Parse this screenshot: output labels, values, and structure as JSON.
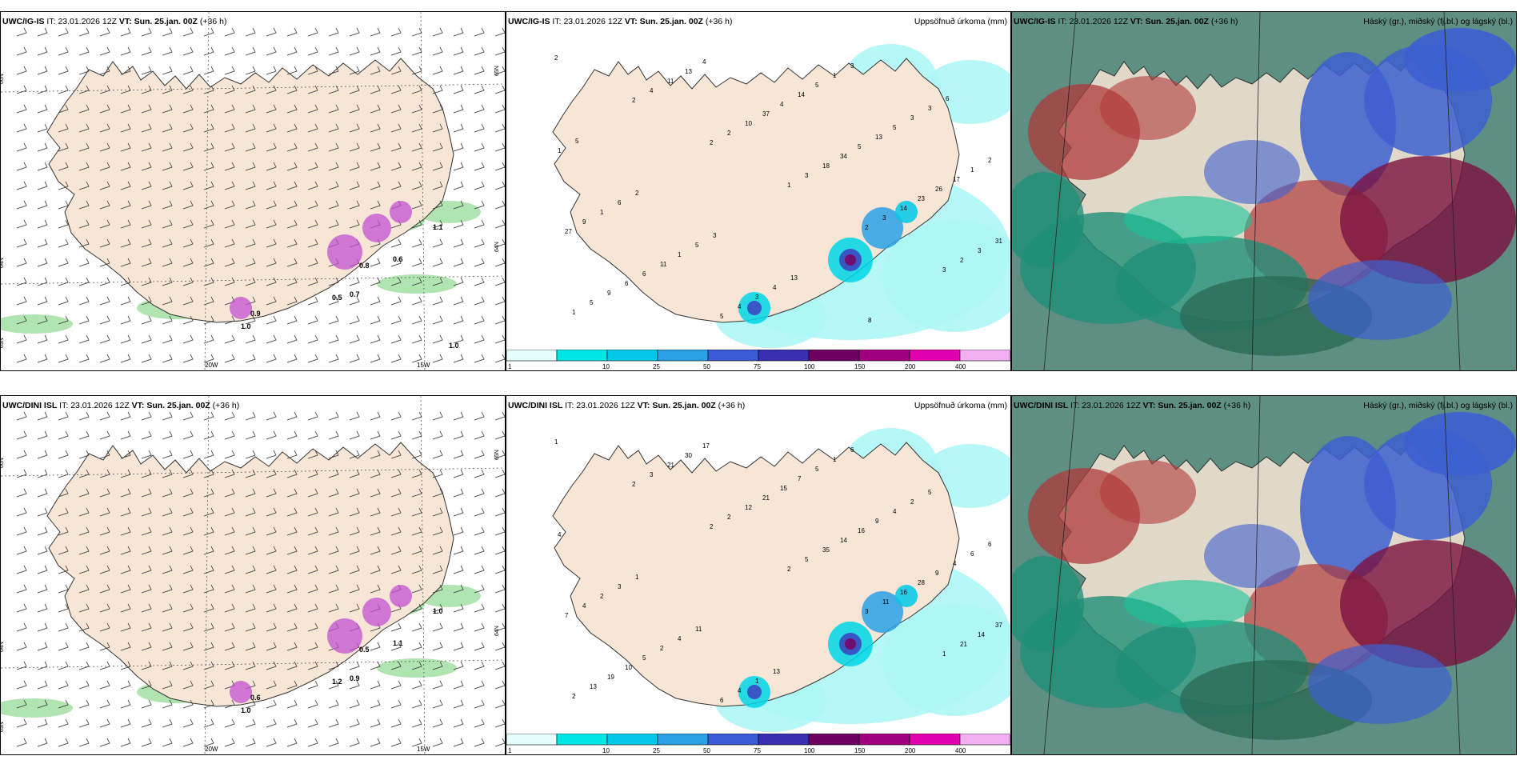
{
  "colors": {
    "land": "#f7e6d6",
    "sea": "#ffffff",
    "precip_sea": "#aef6f6",
    "wind_green": "#8fd98f",
    "precip_purple": "#c24fd0",
    "low_cloud": "#3d5fd0",
    "mid_cloud": "#1f8f78",
    "high_cloud": "#b03a3a"
  },
  "colorbar": {
    "labels": [
      "1",
      "10",
      "25",
      "50",
      "75",
      "100",
      "150",
      "200",
      "400"
    ],
    "colors": [
      "#e6ffff",
      "#00e6e6",
      "#00c8e6",
      "#2aa0e6",
      "#3a5ad8",
      "#3a2fb0",
      "#6e0060",
      "#a0007f",
      "#e000b0",
      "#f0b0f0"
    ]
  },
  "panels": [
    {
      "model": "UWC/IG-IS",
      "it_label": "IT:",
      "it_value": "23.01.2026 12Z",
      "vt_label": "VT:",
      "vt_value": "Sun. 25.jan. 00Z",
      "lead": "(+36 h)",
      "field_title": "",
      "lon_labels": [
        "20W",
        "15W"
      ],
      "lat_labels": [
        "66N",
        "64N",
        "63N",
        "65N",
        "64N"
      ],
      "contour_labels": [
        "0.8",
        "0.6",
        "0.5",
        "0.7",
        "1.0",
        "1.1",
        "0.9",
        "1.0"
      ]
    },
    {
      "model": "UWC/IG-IS",
      "it_label": "IT:",
      "it_value": "23.01.2026 12Z",
      "vt_label": "VT:",
      "vt_value": "Sun. 25.jan. 00Z",
      "lead": "(+36 h)",
      "field_title": "Uppsöfnuð úrkoma (mm)",
      "precip_numbers": [
        "2",
        "2",
        "2",
        "1",
        "2",
        "3",
        "1",
        "4",
        "2",
        "3",
        "3",
        "2",
        "5",
        "11",
        "10",
        "18",
        "14",
        "3",
        "9",
        "13",
        "37",
        "34",
        "23",
        "31",
        "6",
        "4",
        "4",
        "5",
        "26",
        "27",
        "6",
        "5",
        "14",
        "13",
        "17",
        "9",
        "11",
        "4",
        "5",
        "5",
        "1",
        "1",
        "1",
        "3",
        "1",
        "3",
        "2",
        "6",
        "5",
        "4",
        "3",
        "3",
        "1",
        "2",
        "3",
        "13",
        "8",
        "6",
        "5"
      ]
    },
    {
      "model": "UWC/IG-IS",
      "it_label": "IT:",
      "it_value": "23.01.2026 12Z",
      "vt_label": "VT:",
      "vt_value": "Sun. 25.jan. 00Z",
      "lead": "(+36 h)",
      "field_title": "Háský (gr.), miðský (fj.bl.) og lágský (bl.)"
    },
    {
      "model": "UWC/DINI ISL",
      "it_label": "IT:",
      "it_value": "23.01.2026 12Z",
      "vt_label": "VT:",
      "vt_value": "Sun. 25.jan. 00Z",
      "lead": "(+36 h)",
      "field_title": "",
      "lon_labels": [
        "20W",
        "15W"
      ],
      "lat_labels": [
        "66N",
        "64N",
        "63N",
        "65N",
        "64N"
      ],
      "contour_labels": [
        "0.5",
        "1.1",
        "1.2",
        "0.9",
        "1.0",
        "1.0",
        "0.6"
      ]
    },
    {
      "model": "UWC/DINI ISL",
      "it_label": "IT:",
      "it_value": "23.01.2026 12Z",
      "vt_label": "VT:",
      "vt_value": "Sun. 25.jan. 00Z",
      "lead": "(+36 h)",
      "field_title": "Uppsöfnuð úrkoma (mm)",
      "precip_numbers": [
        "1",
        "2",
        "2",
        "2",
        "3",
        "1",
        "2",
        "3",
        "2",
        "5",
        "11",
        "21",
        "13",
        "21",
        "12",
        "35",
        "16",
        "14",
        "19",
        "30",
        "21",
        "14",
        "28",
        "37",
        "10",
        "17",
        "15",
        "16",
        "9",
        "7",
        "5",
        "6",
        "7",
        "9",
        "4",
        "4",
        "2",
        "4",
        "5",
        "4",
        "6",
        "2",
        "4",
        "1",
        "1",
        "2",
        "6",
        "3",
        "11",
        "13",
        "6",
        "5",
        "4",
        "1"
      ]
    },
    {
      "model": "UWC/DINI ISL",
      "it_label": "IT:",
      "it_value": "23.01.2026 12Z",
      "vt_label": "VT:",
      "vt_value": "Sun. 25.jan. 00Z",
      "lead": "(+36 h)",
      "field_title": "Háský (gr.), miðský (fj.bl.) og lágský (bl.)"
    }
  ]
}
